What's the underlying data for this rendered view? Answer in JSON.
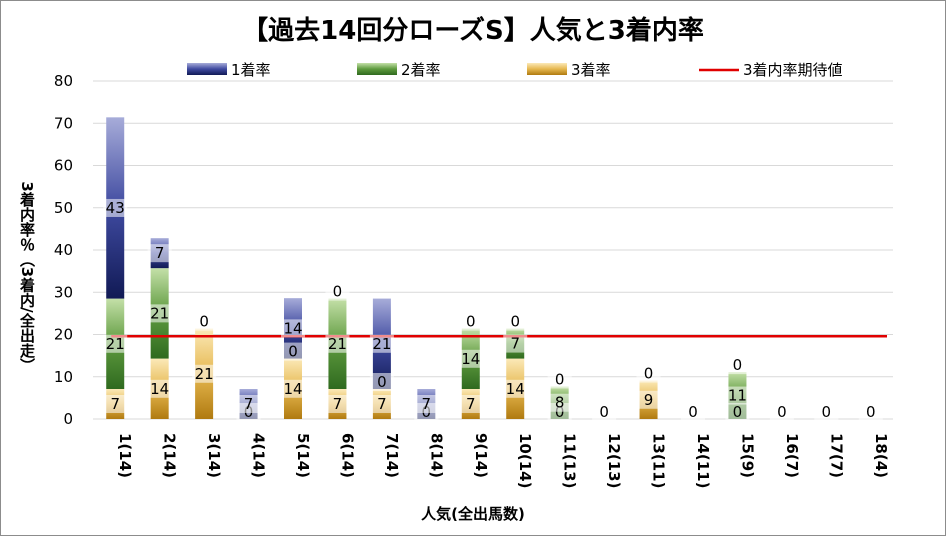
{
  "chart_data": {
    "type": "bar",
    "stacked": true,
    "title": "【過去14回分ローズS】人気と3着内率",
    "xlabel": "人気(全出馬数)",
    "ylabel": "3着内率％（3着内/全出走）",
    "ylim": [
      0,
      80
    ],
    "yticks": [
      "0",
      "10",
      "20",
      "30",
      "40",
      "50",
      "60",
      "70",
      "80"
    ],
    "grid": true,
    "legend_position": "top",
    "categories": [
      "1(14)",
      "2(14)",
      "3(14)",
      "4(14)",
      "5(14)",
      "6(14)",
      "7(14)",
      "8(14)",
      "9(14)",
      "10(14)",
      "11(13)",
      "12(13)",
      "13(11)",
      "14(11)",
      "15(9)",
      "16(7)",
      "17(7)",
      "18(4)"
    ],
    "series": [
      {
        "name": "3着率",
        "color": "#d4a53a",
        "values": [
          7.1,
          14.3,
          21.4,
          0,
          14.3,
          7.1,
          7.1,
          0,
          7.1,
          14.3,
          0,
          0,
          9.1,
          0,
          0,
          0,
          0,
          0
        ],
        "labels": [
          "7",
          "14",
          "21",
          "0",
          "14",
          "7",
          "7",
          "0",
          "7",
          "14",
          "0",
          "0",
          "9",
          "0",
          "0",
          "0",
          "0",
          "0"
        ]
      },
      {
        "name": "2着率",
        "color": "#5e9a3e",
        "values": [
          21.4,
          21.4,
          0,
          0,
          0,
          21.4,
          0,
          0,
          14.3,
          7.1,
          7.7,
          0,
          0,
          0,
          11.1,
          0,
          0,
          0
        ],
        "labels": [
          "21",
          "21",
          "",
          "",
          "0",
          "21",
          "0",
          "",
          "14",
          "7",
          "8",
          "",
          "",
          "",
          "11",
          "",
          "",
          ""
        ]
      },
      {
        "name": "1着率",
        "color": "#3f4aa0",
        "values": [
          42.9,
          7.1,
          0,
          7.1,
          14.3,
          0,
          21.4,
          7.1,
          0,
          0,
          0,
          0,
          0,
          0,
          0,
          0,
          0,
          0
        ],
        "labels": [
          "43",
          "7",
          "0",
          "7",
          "14",
          "0",
          "21",
          "7",
          "0",
          "0",
          "0",
          "",
          "0",
          "",
          "0",
          "",
          "",
          ""
        ]
      }
    ],
    "reference_line": {
      "name": "3着内率期待値",
      "value": 19.6,
      "color": "#e00000"
    },
    "legend_items": [
      {
        "name": "1着率",
        "swatch": "#3f4aa0"
      },
      {
        "name": "2着率",
        "swatch": "#5e9a3e"
      },
      {
        "name": "3着率",
        "swatch": "#d4a53a"
      },
      {
        "name": "3着内率期待値",
        "swatch": "#e00000",
        "line": true
      }
    ]
  }
}
